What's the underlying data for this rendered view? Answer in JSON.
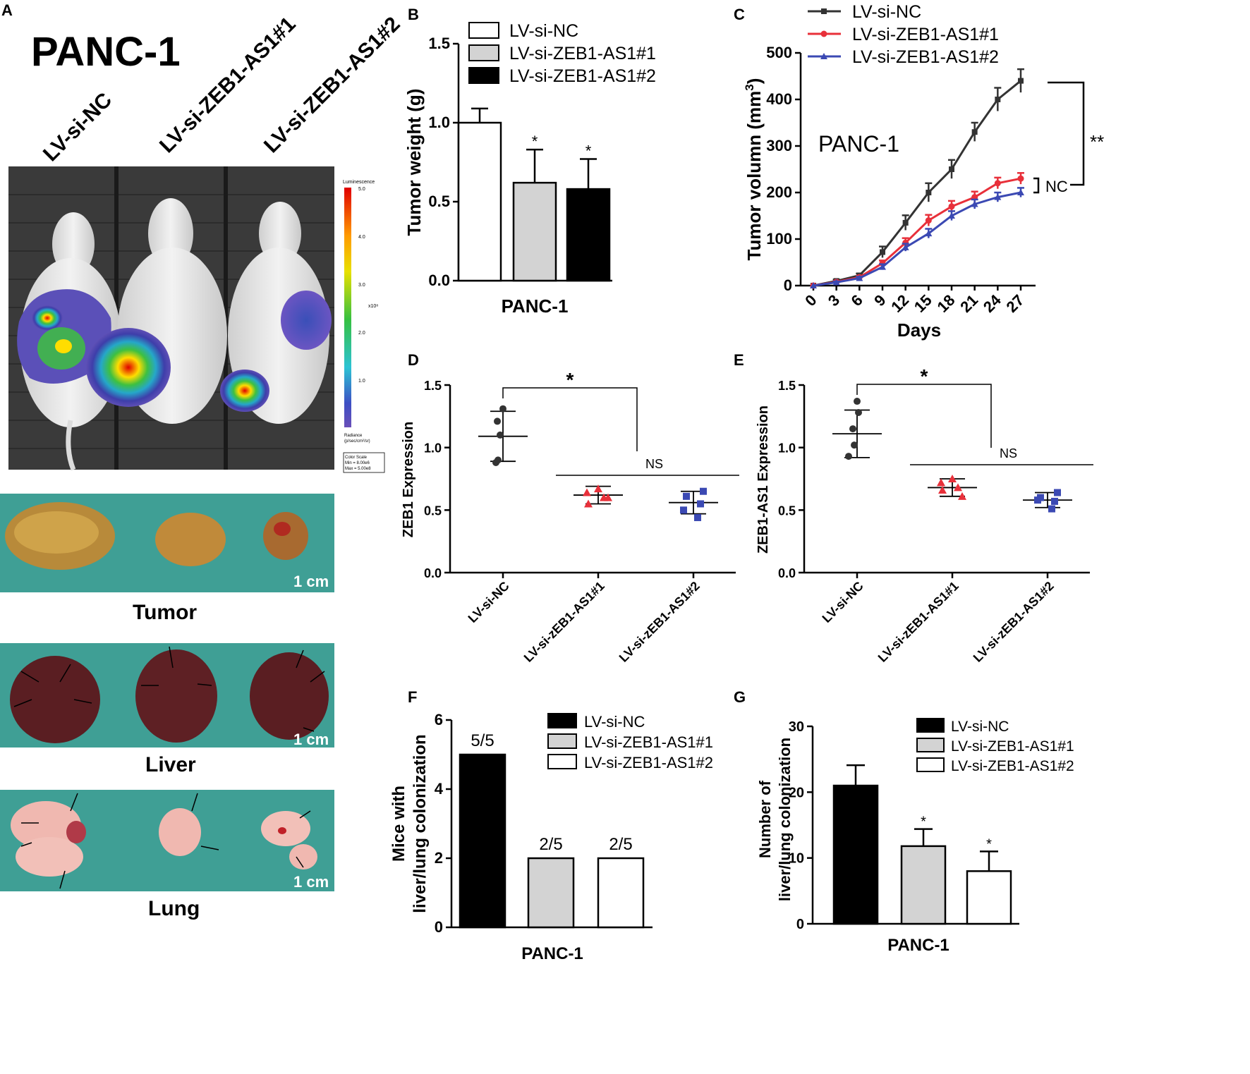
{
  "panels": {
    "A": {
      "letter": "A",
      "cell_line": "PANC-1",
      "group_labels": [
        "LV-si-NC",
        "LV-si-ZEB1-AS1#1",
        "LV-si-ZEB1-AS1#2"
      ],
      "colorbar": {
        "title": "Luminescence",
        "ticks": [
          "5.0",
          "4.0",
          "3.0",
          "2.0",
          "1.0"
        ],
        "exponent": "x10⁸",
        "radiance_label": "Radiance",
        "radiance_units": "(p/sec/cm²/sr)",
        "scale_title": "Color Scale",
        "scale_min": "Min = 8.00e6",
        "scale_max": "Max = 5.00e8"
      },
      "tissues": [
        {
          "caption": "Tumor",
          "scale": "1 cm"
        },
        {
          "caption": "Liver",
          "scale": "1 cm"
        },
        {
          "caption": "Lung",
          "scale": "1 cm"
        }
      ]
    },
    "B": {
      "letter": "B"
    },
    "C": {
      "letter": "C"
    },
    "D": {
      "letter": "D"
    },
    "E": {
      "letter": "E"
    },
    "F": {
      "letter": "F"
    },
    "G": {
      "letter": "G"
    }
  },
  "colors": {
    "nc": "#333333",
    "si1": "#e8303a",
    "si2": "#3b49b3",
    "grey_bar": "#d3d3d3",
    "black_bar": "#000000"
  },
  "chart_data": [
    {
      "id": "B",
      "type": "bar",
      "title": "",
      "xlabel": "PANC-1",
      "ylabel": "Tumor weight (g)",
      "ylim": [
        0,
        1.5
      ],
      "yticks": [
        "0.0",
        "0.5",
        "1.0",
        "1.5"
      ],
      "categories": [
        "LV-si-NC",
        "LV-si-ZEB1-AS1#1",
        "LV-si-ZEB1-AS1#2"
      ],
      "values": [
        1.0,
        0.62,
        0.58
      ],
      "errors": [
        0.09,
        0.21,
        0.19
      ],
      "fills": [
        "#ffffff",
        "#d3d3d3",
        "#000000"
      ],
      "annotations": [
        "",
        "*",
        "*"
      ],
      "legend": [
        "LV-si-NC",
        "LV-si-ZEB1-AS1#1",
        "LV-si-ZEB1-AS1#2"
      ]
    },
    {
      "id": "C",
      "type": "line",
      "title": "PANC-1",
      "xlabel": "Days",
      "ylabel": "Tumor volumn (mm",
      "ylabel_sup": "3",
      "ylabel_close": ")",
      "ylim": [
        0,
        500
      ],
      "yticks": [
        "0",
        "100",
        "200",
        "300",
        "400",
        "500"
      ],
      "x": [
        0,
        3,
        6,
        9,
        12,
        15,
        18,
        21,
        24,
        27
      ],
      "series": [
        {
          "name": "LV-si-NC",
          "values": [
            0,
            10,
            22,
            72,
            135,
            200,
            250,
            330,
            400,
            440
          ],
          "errors": [
            0,
            3,
            4,
            12,
            16,
            20,
            20,
            20,
            25,
            25
          ]
        },
        {
          "name": "LV-si-ZEB1-AS1#1",
          "values": [
            0,
            8,
            18,
            48,
            92,
            140,
            170,
            190,
            220,
            230
          ],
          "errors": [
            0,
            2,
            3,
            6,
            10,
            12,
            12,
            12,
            12,
            12
          ]
        },
        {
          "name": "LV-si-ZEB1-AS1#2",
          "values": [
            0,
            7,
            16,
            40,
            82,
            112,
            150,
            175,
            190,
            200
          ],
          "errors": [
            0,
            2,
            3,
            6,
            8,
            10,
            10,
            10,
            10,
            10
          ]
        }
      ],
      "annotations": {
        "nc_label": "NC",
        "sig_label": "**"
      }
    },
    {
      "id": "D",
      "type": "scatter",
      "title": "",
      "xlabel": "",
      "ylabel": "ZEB1 Expression",
      "ylim": [
        0,
        1.5
      ],
      "yticks": [
        "0.0",
        "0.5",
        "1.0",
        "1.5"
      ],
      "categories": [
        "LV-si-NC",
        "LV-si-zEB1-AS1#1",
        "LV-si-zEB1-AS1#2"
      ],
      "points": [
        [
          1.31,
          1.21,
          1.1,
          0.88,
          0.9
        ],
        [
          0.67,
          0.64,
          0.6,
          0.55,
          0.6
        ],
        [
          0.65,
          0.61,
          0.55,
          0.5,
          0.44
        ]
      ],
      "means": [
        1.09,
        0.62,
        0.56
      ],
      "sds": [
        0.2,
        0.07,
        0.09
      ],
      "annotations": {
        "sig": "*",
        "ns": "NS"
      }
    },
    {
      "id": "E",
      "type": "scatter",
      "title": "",
      "xlabel": "",
      "ylabel": "ZEB1-AS1 Expression",
      "ylim": [
        0,
        1.5
      ],
      "yticks": [
        "0.0",
        "0.5",
        "1.0",
        "1.5"
      ],
      "categories": [
        "LV-si-NC",
        "LV-si-zEB1-AS1#1",
        "LV-si-zEB1-AS1#2"
      ],
      "points": [
        [
          1.37,
          1.28,
          1.15,
          1.02,
          0.93
        ],
        [
          0.75,
          0.72,
          0.68,
          0.66,
          0.61
        ],
        [
          0.64,
          0.6,
          0.57,
          0.58,
          0.51
        ]
      ],
      "means": [
        1.11,
        0.68,
        0.58
      ],
      "sds": [
        0.19,
        0.07,
        0.06
      ],
      "annotations": {
        "sig": "*",
        "ns": "NS"
      }
    },
    {
      "id": "F",
      "type": "bar",
      "title": "",
      "xlabel": "PANC-1",
      "ylabel": "Mice with",
      "ylabel2": "liver/lung colonization",
      "ylim": [
        0,
        6
      ],
      "yticks": [
        "0",
        "2",
        "4",
        "6"
      ],
      "categories": [
        "LV-si-NC",
        "LV-si-ZEB1-AS1#1",
        "LV-si-ZEB1-AS1#2"
      ],
      "values": [
        5,
        2,
        2
      ],
      "fills": [
        "#000000",
        "#d3d3d3",
        "#ffffff"
      ],
      "annotations": [
        "5/5",
        "2/5",
        "2/5"
      ],
      "legend": [
        "LV-si-NC",
        "LV-si-ZEB1-AS1#1",
        "LV-si-ZEB1-AS1#2"
      ]
    },
    {
      "id": "G",
      "type": "bar",
      "title": "",
      "xlabel": "PANC-1",
      "ylabel": "Number of",
      "ylabel2": "liver/lung colonization",
      "ylim": [
        0,
        30
      ],
      "yticks": [
        "0",
        "10",
        "20",
        "30"
      ],
      "categories": [
        "LV-si-NC",
        "LV-si-ZEB1-AS1#1",
        "LV-si-ZEB1-AS1#2"
      ],
      "values": [
        21,
        11.8,
        8
      ],
      "errors": [
        3.1,
        2.6,
        3.0
      ],
      "fills": [
        "#000000",
        "#d3d3d3",
        "#ffffff"
      ],
      "annotations": [
        "",
        "*",
        "*"
      ],
      "legend": [
        "LV-si-NC",
        "LV-si-ZEB1-AS1#1",
        "LV-si-ZEB1-AS1#2"
      ]
    }
  ]
}
